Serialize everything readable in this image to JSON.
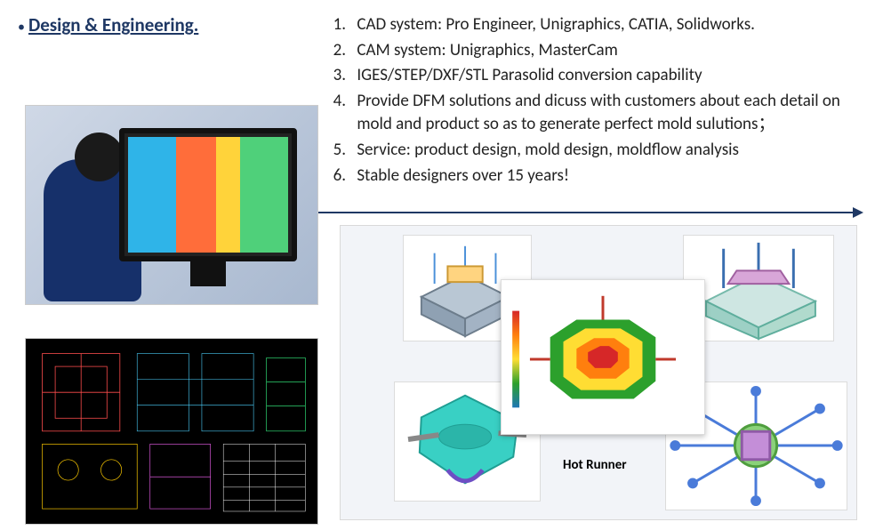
{
  "title": "Design & Engineering.",
  "list": [
    "CAD system: Pro Engineer, Unigraphics, CATIA, Solidworks.",
    "CAM system: Unigraphics, MasterCam",
    "IGES/STEP/DXF/STL Parasolid conversion capability",
    "Provide DFM solutions and dicuss with customers about each detail on mold and product so as to generate perfect mold sulutions；",
    "Service: product design, mold design, moldflow analysis",
    "Stable designers over 15 years!"
  ],
  "hot_runner_label": "Hot Runner",
  "colors": {
    "accent": "#1f3864",
    "panel_bg": "#f2f4f8"
  },
  "images": {
    "top_left": "engineer-at-cad-workstation",
    "bottom_left": "2d-cad-drawing-dark",
    "gallery": [
      "mold-assembly-iso-1",
      "mold-assembly-iso-2",
      "mold-part-turquoise",
      "moldflow-analysis-heatmap",
      "hot-runner-system"
    ]
  }
}
